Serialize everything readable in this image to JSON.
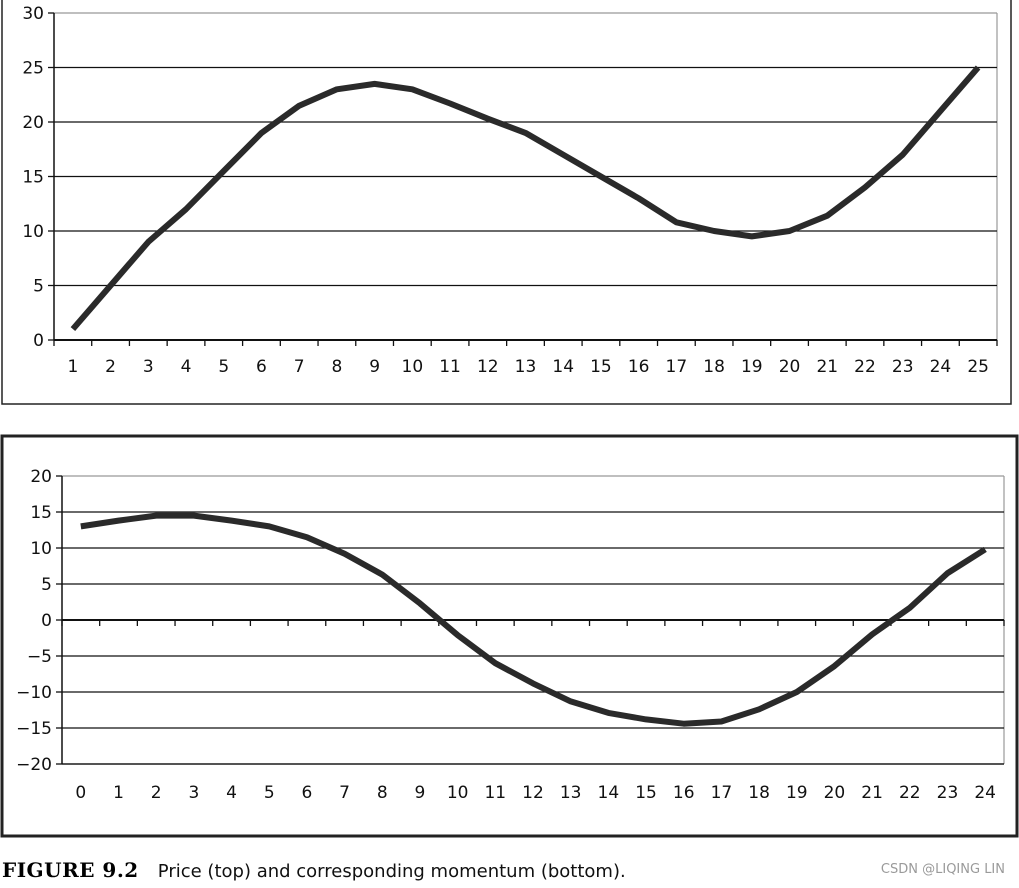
{
  "chart_data": [
    {
      "type": "line",
      "panel": "top",
      "x": [
        1,
        2,
        3,
        4,
        5,
        6,
        7,
        8,
        9,
        10,
        11,
        12,
        13,
        14,
        15,
        16,
        17,
        18,
        19,
        20,
        21,
        22,
        23,
        24,
        25
      ],
      "x_tick_labels": [
        "1",
        "2",
        "3",
        "4",
        "5",
        "6",
        "7",
        "8",
        "9",
        "10",
        "11",
        "12",
        "13",
        "14",
        "15",
        "16",
        "17",
        "18",
        "19",
        "20",
        "21",
        "22",
        "23",
        "24",
        "25"
      ],
      "series": [
        {
          "values": [
            1,
            5,
            9,
            12,
            15.5,
            19,
            21.5,
            23,
            23.5,
            23,
            21.7,
            20.3,
            19,
            17,
            15,
            13,
            10.8,
            10,
            9.5,
            10,
            11.4,
            14,
            17,
            21,
            25
          ]
        }
      ],
      "ylim": [
        0,
        30
      ],
      "y_ticks": [
        0,
        5,
        10,
        15,
        20,
        25,
        30
      ],
      "y_tick_labels": [
        "0",
        "5",
        "10",
        "15",
        "20",
        "25",
        "30"
      ],
      "grid": true,
      "line_color": "#2a2a2a"
    },
    {
      "type": "line",
      "panel": "bottom",
      "x": [
        0,
        1,
        2,
        3,
        4,
        5,
        6,
        7,
        8,
        9,
        10,
        11,
        12,
        13,
        14,
        15,
        16,
        17,
        18,
        19,
        20,
        21,
        22,
        23,
        24
      ],
      "x_tick_labels": [
        "0",
        "1",
        "2",
        "3",
        "4",
        "5",
        "6",
        "7",
        "8",
        "9",
        "10",
        "11",
        "12",
        "13",
        "14",
        "15",
        "16",
        "17",
        "18",
        "19",
        "20",
        "21",
        "22",
        "23",
        "24"
      ],
      "series": [
        {
          "values": [
            13,
            13.8,
            14.5,
            14.5,
            13.8,
            13,
            11.5,
            9.2,
            6.3,
            2.3,
            -2.1,
            -6,
            -8.8,
            -11.3,
            -12.9,
            -13.8,
            -14.4,
            -14.1,
            -12.4,
            -10,
            -6.4,
            -2,
            1.7,
            6.5,
            9.8
          ]
        }
      ],
      "ylim": [
        -20,
        20
      ],
      "y_ticks": [
        -20,
        -15,
        -10,
        -5,
        0,
        5,
        10,
        15,
        20
      ],
      "y_tick_labels": [
        "−20",
        "−15",
        "−10",
        "−5",
        "0",
        "5",
        "10",
        "15",
        "20"
      ],
      "grid": true,
      "line_color": "#2a2a2a"
    }
  ],
  "caption": {
    "label": "FIGURE 9.2",
    "text": "Price (top) and corresponding momentum (bottom)."
  },
  "watermark": "CSDN @LIQING LIN"
}
